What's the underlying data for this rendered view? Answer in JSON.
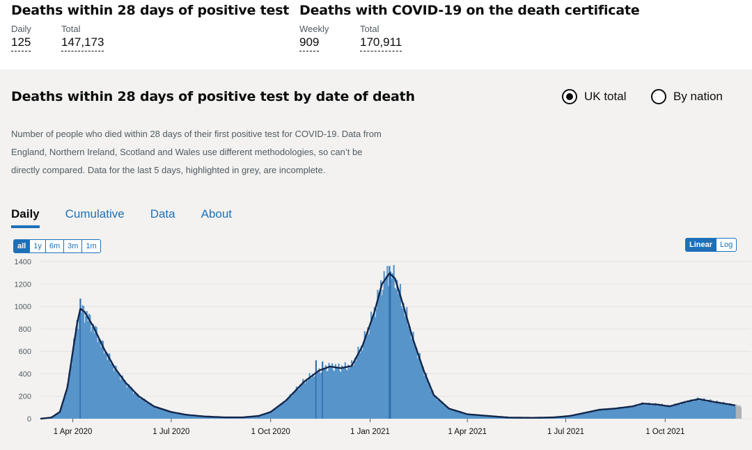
{
  "headline_left": {
    "title": "Deaths within 28 days of positive test",
    "stats": [
      {
        "label": "Daily",
        "value": "125"
      },
      {
        "label": "Total",
        "value": "147,173"
      }
    ]
  },
  "headline_right": {
    "title": "Deaths with COVID-19 on the death certificate",
    "stats": [
      {
        "label": "Weekly",
        "value": "909"
      },
      {
        "label": "Total",
        "value": "170,911"
      }
    ]
  },
  "card": {
    "title": "Deaths within 28 days of positive test by date of death",
    "radios": [
      {
        "label": "UK total",
        "selected": true
      },
      {
        "label": "By nation",
        "selected": false
      }
    ],
    "description": "Number of people who died within 28 days of their first positive test for COVID-19. Data from England, Northern Ireland, Scotland and Wales use different methodologies, so can’t be directly compared. Data for the last 5 days, highlighted in grey, are incomplete.",
    "tabs": [
      "Daily",
      "Cumulative",
      "Data",
      "About"
    ],
    "active_tab": "Daily",
    "range_buttons": [
      "all",
      "1y",
      "6m",
      "3m",
      "1m"
    ],
    "active_range": "all",
    "scale_buttons": [
      "Linear",
      "Log"
    ],
    "active_scale": "Linear"
  },
  "colors": {
    "bar": "#5694ca",
    "bar_spike": "#2f6fae",
    "line": "#12264a",
    "incomplete": "#b1b4b6",
    "link": "#1d70b8",
    "grid": "#e3e3e3"
  },
  "chart_data": {
    "type": "bar",
    "title": "Deaths within 28 days of positive test by date of death",
    "xlabel": "",
    "ylabel": "",
    "ylim": [
      0,
      1400
    ],
    "yticks": [
      0,
      200,
      400,
      600,
      800,
      1000,
      1200,
      1400
    ],
    "x_start_date": "2020-03-02",
    "x_end_date": "2021-12-10",
    "x_ticks": [
      {
        "label": "1 Apr 2020",
        "date": "2020-04-01"
      },
      {
        "label": "1 Jul 2020",
        "date": "2020-07-01"
      },
      {
        "label": "1 Oct 2020",
        "date": "2020-10-01"
      },
      {
        "label": "1 Jan 2021",
        "date": "2021-01-01"
      },
      {
        "label": "1 Apr 2021",
        "date": "2021-04-01"
      },
      {
        "label": "1 Jul 2021",
        "date": "2021-07-01"
      },
      {
        "label": "1 Oct 2021",
        "date": "2021-10-01"
      }
    ],
    "series": [
      {
        "name": "Daily deaths (bars)",
        "style": "bars",
        "keypoints": [
          [
            "2020-03-02",
            0
          ],
          [
            "2020-03-12",
            10
          ],
          [
            "2020-03-20",
            60
          ],
          [
            "2020-03-27",
            280
          ],
          [
            "2020-04-01",
            600
          ],
          [
            "2020-04-05",
            850
          ],
          [
            "2020-04-08",
            980
          ],
          [
            "2020-04-12",
            950
          ],
          [
            "2020-04-20",
            820
          ],
          [
            "2020-04-30",
            620
          ],
          [
            "2020-05-10",
            450
          ],
          [
            "2020-05-20",
            320
          ],
          [
            "2020-06-01",
            200
          ],
          [
            "2020-06-15",
            110
          ],
          [
            "2020-07-01",
            60
          ],
          [
            "2020-07-15",
            35
          ],
          [
            "2020-08-01",
            20
          ],
          [
            "2020-08-20",
            12
          ],
          [
            "2020-09-05",
            12
          ],
          [
            "2020-09-20",
            25
          ],
          [
            "2020-10-01",
            60
          ],
          [
            "2020-10-15",
            160
          ],
          [
            "2020-11-01",
            330
          ],
          [
            "2020-11-15",
            430
          ],
          [
            "2020-11-25",
            465
          ],
          [
            "2020-12-05",
            450
          ],
          [
            "2020-12-15",
            470
          ],
          [
            "2020-12-25",
            650
          ],
          [
            "2021-01-05",
            950
          ],
          [
            "2021-01-12",
            1200
          ],
          [
            "2021-01-19",
            1295
          ],
          [
            "2021-01-24",
            1250
          ],
          [
            "2021-02-01",
            1000
          ],
          [
            "2021-02-10",
            700
          ],
          [
            "2021-02-20",
            420
          ],
          [
            "2021-03-01",
            210
          ],
          [
            "2021-03-15",
            90
          ],
          [
            "2021-04-01",
            40
          ],
          [
            "2021-04-20",
            25
          ],
          [
            "2021-05-10",
            10
          ],
          [
            "2021-06-01",
            8
          ],
          [
            "2021-06-20",
            12
          ],
          [
            "2021-07-05",
            25
          ],
          [
            "2021-07-20",
            55
          ],
          [
            "2021-08-01",
            80
          ],
          [
            "2021-08-15",
            90
          ],
          [
            "2021-09-01",
            110
          ],
          [
            "2021-09-10",
            135
          ],
          [
            "2021-09-25",
            125
          ],
          [
            "2021-10-05",
            110
          ],
          [
            "2021-10-20",
            150
          ],
          [
            "2021-11-01",
            175
          ],
          [
            "2021-11-15",
            150
          ],
          [
            "2021-12-01",
            125
          ],
          [
            "2021-12-10",
            110
          ]
        ],
        "spikes": [
          [
            "2020-04-08",
            1070
          ],
          [
            "2020-11-12",
            520
          ],
          [
            "2020-11-18",
            510
          ],
          [
            "2021-01-19",
            1360
          ],
          [
            "2021-01-20",
            1310
          ]
        ],
        "incomplete_last_days": 5
      },
      {
        "name": "7-day rolling average",
        "style": "line"
      }
    ]
  }
}
